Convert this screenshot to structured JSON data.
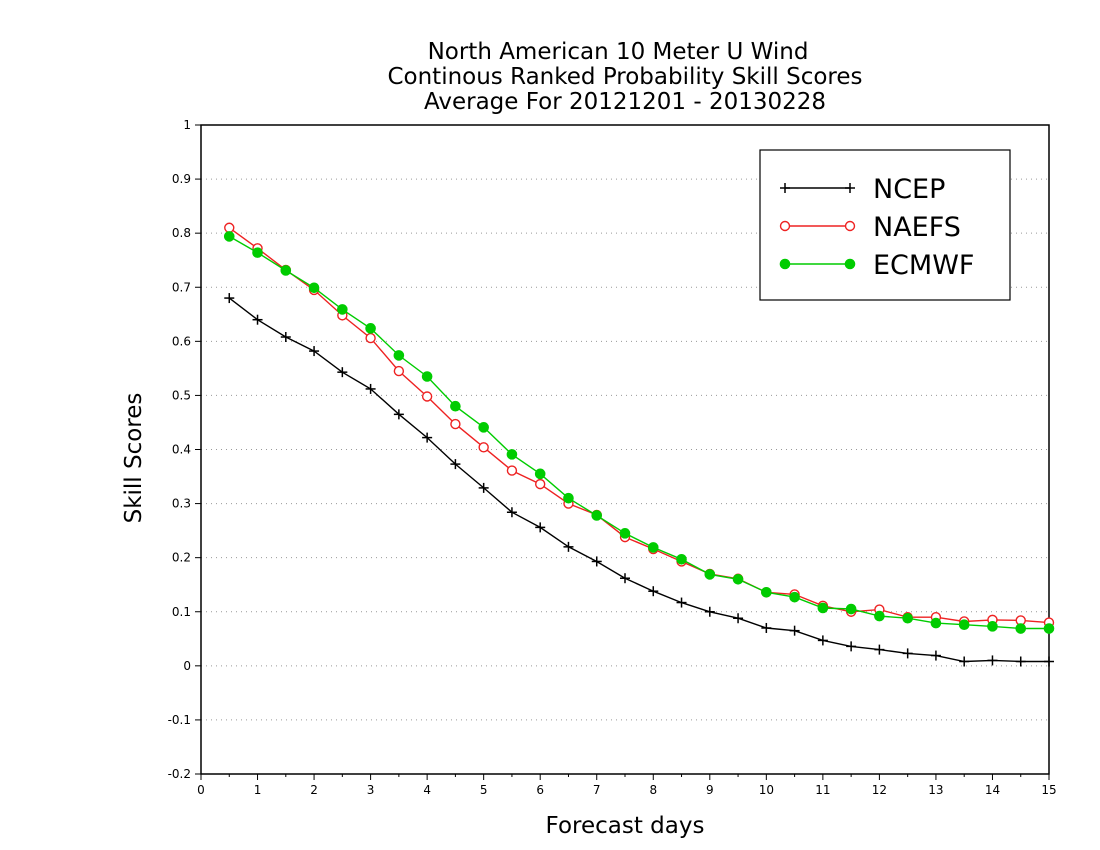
{
  "chart_data": {
    "type": "line",
    "title": [
      "North American 10 Meter U Wind",
      "Continous Ranked Probability Skill Scores",
      "Average For 20121201 - 20130228"
    ],
    "xlabel": "Forecast days",
    "ylabel": "Skill Scores",
    "xlim": [
      0,
      15
    ],
    "ylim": [
      -0.2,
      1
    ],
    "xticks": [
      0,
      1,
      2,
      3,
      4,
      5,
      6,
      7,
      8,
      9,
      10,
      11,
      12,
      13,
      14,
      15
    ],
    "yticks": [
      -0.2,
      -0.1,
      0,
      0.1,
      0.2,
      0.3,
      0.4,
      0.5,
      0.6,
      0.7,
      0.8,
      0.9,
      1
    ],
    "ytick_labels": [
      "-0.2",
      "-0.1",
      "0",
      "0.1",
      "0.2",
      "0.3",
      "0.4",
      "0.5",
      "0.6",
      "0.7",
      "0.8",
      "0.9",
      "1"
    ],
    "grid": "horizontal dotted",
    "legend_position": "top-right",
    "x": [
      0.5,
      1,
      1.5,
      2,
      2.5,
      3,
      3.5,
      4,
      4.5,
      5,
      5.5,
      6,
      6.5,
      7,
      7.5,
      8,
      8.5,
      9,
      9.5,
      10,
      10.5,
      11,
      11.5,
      12,
      12.5,
      13,
      13.5,
      14,
      14.5,
      15
    ],
    "series": [
      {
        "name": "NCEP",
        "color": "#000000",
        "marker": "plus",
        "values": [
          0.68,
          0.64,
          0.608,
          0.582,
          0.543,
          0.512,
          0.465,
          0.422,
          0.373,
          0.329,
          0.284,
          0.256,
          0.22,
          0.193,
          0.162,
          0.138,
          0.117,
          0.1,
          0.088,
          0.07,
          0.065,
          0.047,
          0.036,
          0.03,
          0.023,
          0.019,
          0.008,
          0.01,
          0.008,
          0.008
        ]
      },
      {
        "name": "NAEFS",
        "color": "#ee2222",
        "marker": "open-circle",
        "values": [
          0.81,
          0.772,
          0.732,
          0.695,
          0.648,
          0.606,
          0.545,
          0.498,
          0.447,
          0.404,
          0.361,
          0.336,
          0.3,
          0.279,
          0.238,
          0.216,
          0.193,
          0.17,
          0.161,
          0.136,
          0.132,
          0.111,
          0.1,
          0.104,
          0.09,
          0.09,
          0.082,
          0.085,
          0.084,
          0.08
        ]
      },
      {
        "name": "ECMWF",
        "color": "#00cc00",
        "marker": "filled-circle",
        "values": [
          0.794,
          0.764,
          0.731,
          0.699,
          0.659,
          0.624,
          0.574,
          0.535,
          0.48,
          0.441,
          0.391,
          0.355,
          0.31,
          0.278,
          0.245,
          0.219,
          0.197,
          0.169,
          0.16,
          0.136,
          0.127,
          0.107,
          0.105,
          0.092,
          0.088,
          0.079,
          0.076,
          0.073,
          0.069,
          0.069
        ]
      }
    ]
  }
}
